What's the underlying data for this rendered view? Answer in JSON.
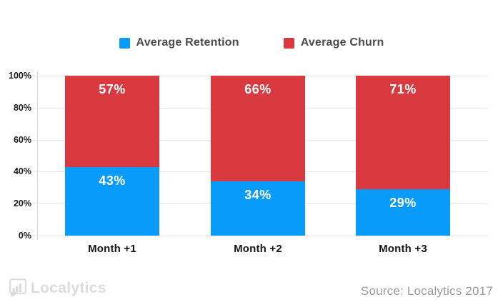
{
  "colors": {
    "retention_blue": "#089bfa",
    "churn_red": "#d93a3f",
    "gridline": "#e7e7e7",
    "axis_line": "#d9d9d9",
    "tick_text": "#1c1c1e",
    "legend_text": "#4b4b4d",
    "bar_label_text": "#ffffff",
    "logo_gray": "#dbdbdb",
    "source_gray": "#9b9b9b"
  },
  "legend": {
    "items": [
      {
        "label": "Average Retention",
        "color": "#089bfa"
      },
      {
        "label": "Average Churn",
        "color": "#d93a3f"
      }
    ]
  },
  "chart_data": {
    "type": "bar",
    "stacked": true,
    "categories": [
      "Month +1",
      "Month +2",
      "Month +3"
    ],
    "series": [
      {
        "name": "Average Retention",
        "color": "#089bfa",
        "values": [
          43,
          34,
          29
        ],
        "labels": [
          "43%",
          "34%",
          "29%"
        ]
      },
      {
        "name": "Average Churn",
        "color": "#d93a3f",
        "values": [
          57,
          66,
          71
        ],
        "labels": [
          "57%",
          "66%",
          "71%"
        ]
      }
    ],
    "title": "",
    "xlabel": "",
    "ylabel": "",
    "ylim": [
      0,
      100
    ],
    "y_ticks": [
      "0%",
      "20%",
      "40%",
      "60%",
      "80%",
      "100%"
    ],
    "grid": true,
    "legend_position": "top-center"
  },
  "footer": {
    "logo_text": "Localytics",
    "source": "Source: Localytics 2017"
  }
}
